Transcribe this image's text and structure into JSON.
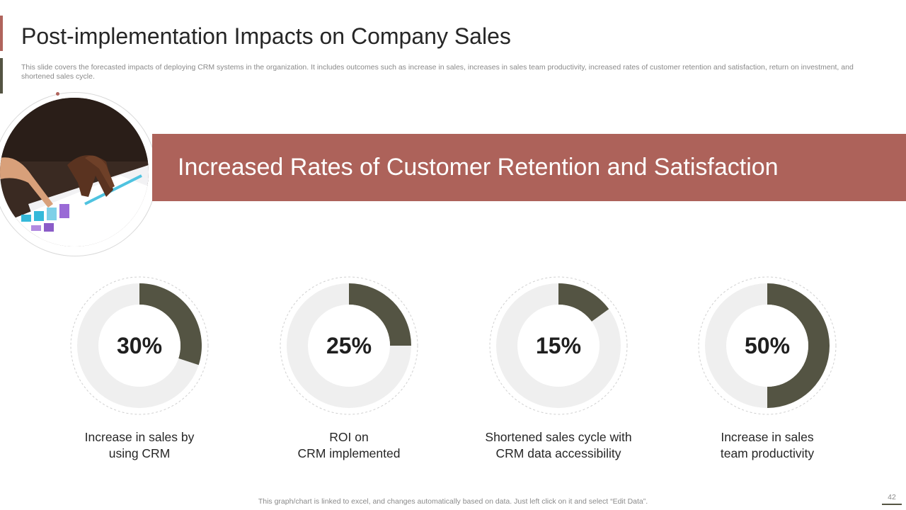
{
  "header": {
    "title": "Post-implementation Impacts on Company Sales",
    "subtitle": "This slide covers the forecasted impacts of deploying CRM systems in the organization. It includes outcomes such as increase in sales, increases in sales team productivity, increased rates of customer retention and satisfaction, return on investment, and shortened sales cycle."
  },
  "banner": {
    "text": "Increased Rates of Customer Retention and Satisfaction"
  },
  "colors": {
    "accent": "#ad625a",
    "dark": "#545443",
    "track": "#efefef"
  },
  "chart_data": {
    "type": "pie",
    "charts": [
      {
        "value": 30,
        "label": "30%",
        "caption": [
          "Increase in sales by",
          "using  CRM"
        ]
      },
      {
        "value": 25,
        "label": "25%",
        "caption": [
          "ROI on",
          "CRM implemented"
        ]
      },
      {
        "value": 15,
        "label": "15%",
        "caption": [
          "Shortened sales cycle with",
          "CRM data accessibility"
        ]
      },
      {
        "value": 50,
        "label": "50%",
        "caption": [
          "Increase in sales",
          "team productivity"
        ]
      }
    ]
  },
  "footer": {
    "note": "This graph/chart is linked to excel,  and changes automatically based on data. Just left click on it and select “Edit Data”.",
    "page_number": "42"
  }
}
